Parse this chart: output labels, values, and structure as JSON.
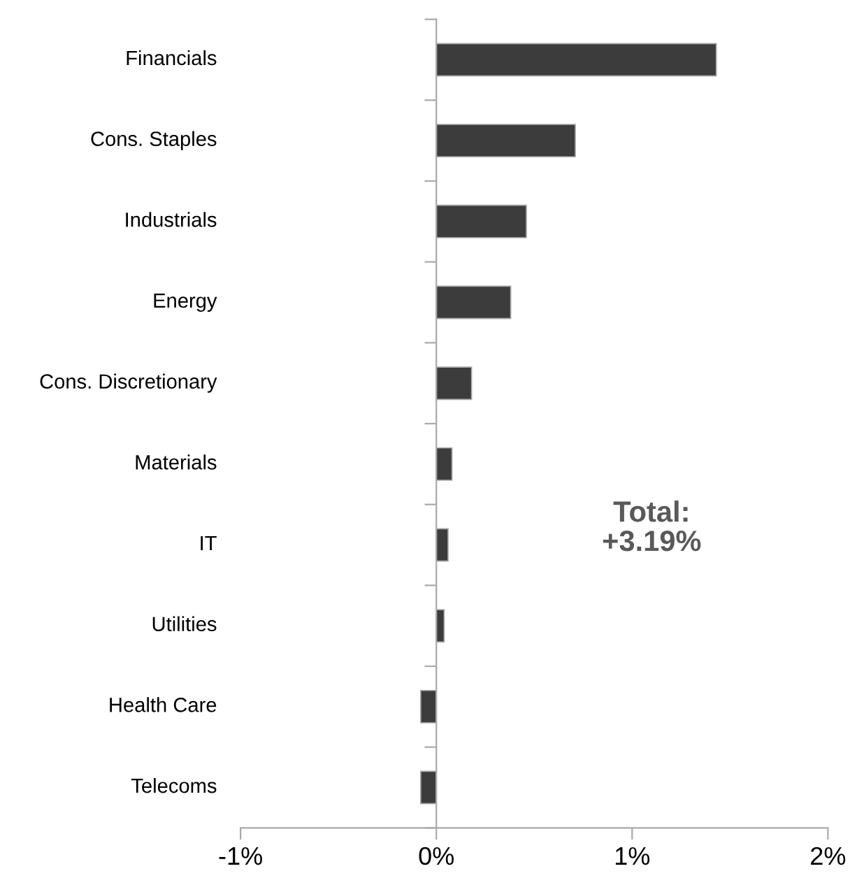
{
  "chart_data": {
    "type": "bar",
    "orientation": "horizontal",
    "categories": [
      "Financials",
      "Cons. Staples",
      "Industrials",
      "Energy",
      "Cons. Discretionary",
      "Materials",
      "IT",
      "Utilities",
      "Health Care",
      "Telecoms"
    ],
    "values": [
      1.43,
      0.71,
      0.46,
      0.38,
      0.18,
      0.08,
      0.06,
      0.04,
      -0.08,
      -0.08
    ],
    "color": "#3c3c3c",
    "xlim": [
      -1,
      2
    ],
    "xticks": [
      {
        "value": -1,
        "label": "-1%"
      },
      {
        "value": 0,
        "label": "0%"
      },
      {
        "value": 1,
        "label": "1%"
      },
      {
        "value": 2,
        "label": "2%"
      }
    ],
    "annotations": [
      "Total:\n+3.19%"
    ]
  }
}
